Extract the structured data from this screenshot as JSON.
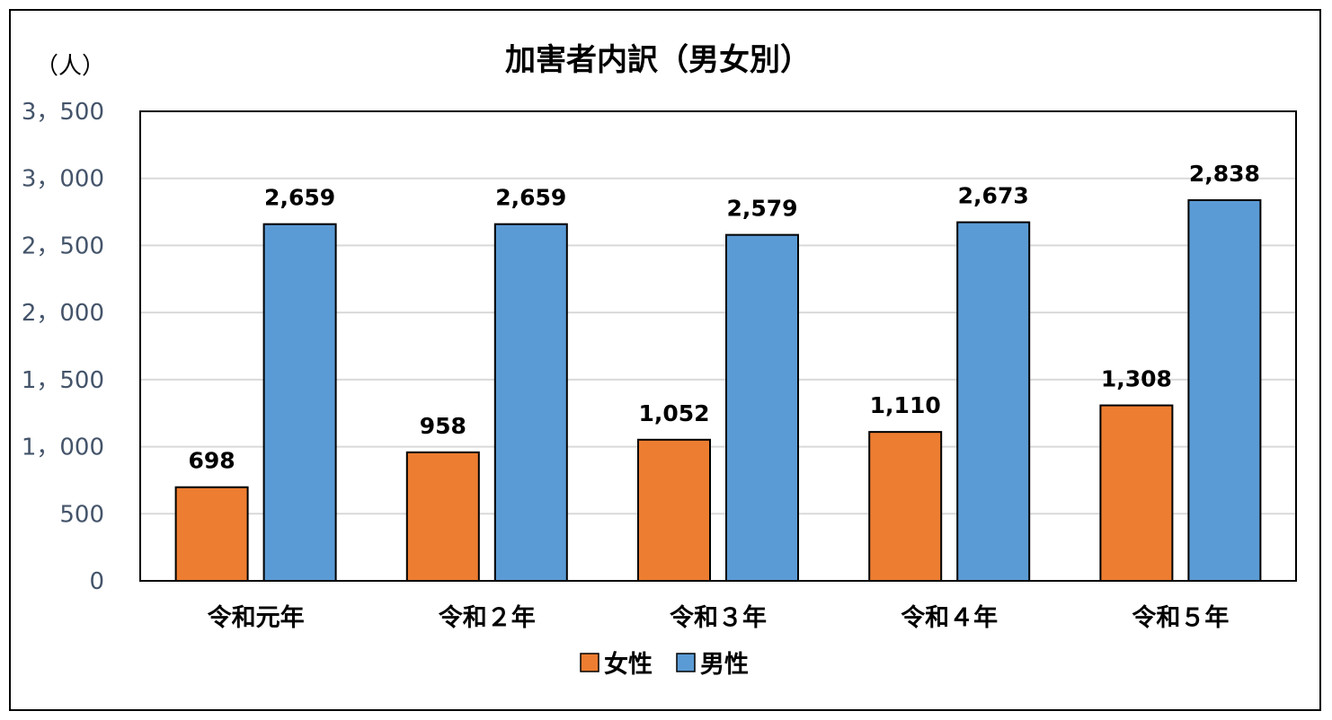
{
  "chart_data": {
    "type": "bar",
    "title": "加害者内訳（男女別）",
    "ylabel": "（人）",
    "categories": [
      "令和元年",
      "令和２年",
      "令和３年",
      "令和４年",
      "令和５年"
    ],
    "series": [
      {
        "name": "女性",
        "color": "#ed7d31",
        "values": [
          698,
          958,
          1052,
          1110,
          1308
        ],
        "labels": [
          "698",
          "958",
          "1,052",
          "1,110",
          "1,308"
        ]
      },
      {
        "name": "男性",
        "color": "#5b9bd5",
        "values": [
          2659,
          2659,
          2579,
          2673,
          2838
        ],
        "labels": [
          "2,659",
          "2,659",
          "2,579",
          "2,673",
          "2,838"
        ]
      }
    ],
    "ylim": [
      0,
      3500
    ],
    "yticks": [
      0,
      500,
      1000,
      1500,
      2000,
      2500,
      3000,
      3500
    ],
    "ytick_labels": [
      "0",
      "500",
      "1，000",
      "1，500",
      "2，000",
      "2，500",
      "3，000",
      "3，500"
    ],
    "grid": true,
    "legend": "bottom"
  }
}
